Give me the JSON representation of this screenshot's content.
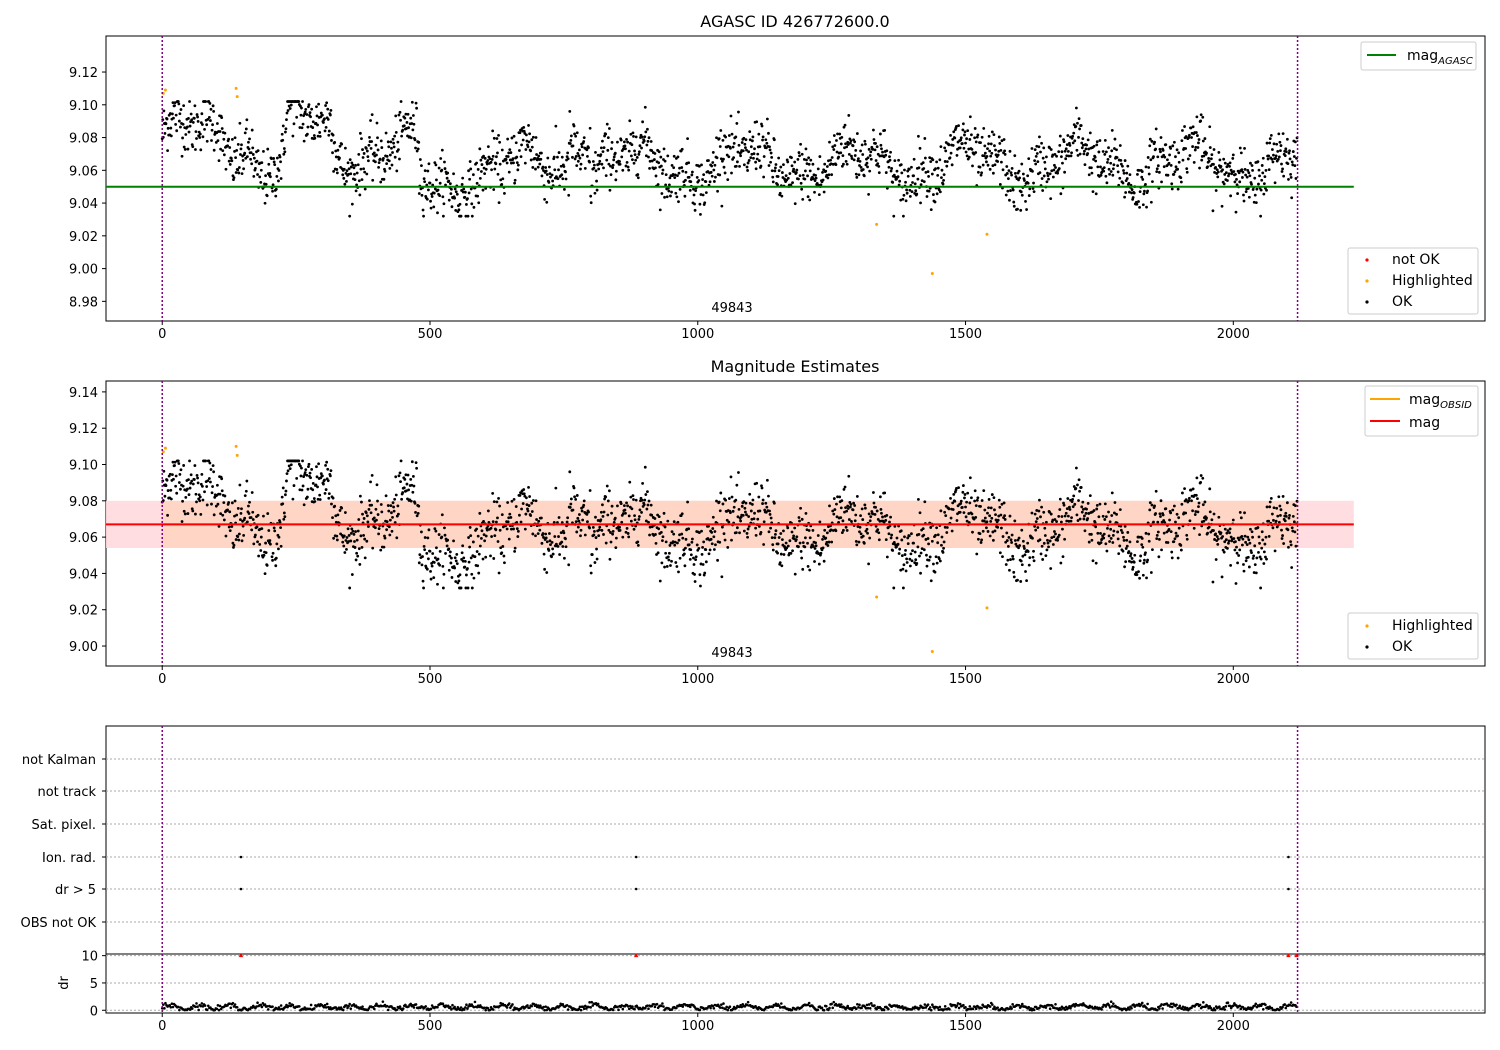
{
  "figure_title": "AGASC ID 426772600.0",
  "colors": {
    "ok": "#000000",
    "highlighted": "#ffa500",
    "not_ok": "#ff0000",
    "mag_agasc": "#008000",
    "mag_obsid": "#ffa500",
    "mag": "#ff0000",
    "obsid_boundary": "#800080",
    "band_outer": "#ffd9dd",
    "band_inner": "#ffd4c2"
  },
  "chart_data": [
    {
      "type": "scatter",
      "title": "AGASC ID 426772600.0",
      "xlim": [
        -105,
        2470
      ],
      "ylim": [
        8.968,
        9.142
      ],
      "xticks": [
        0,
        500,
        1000,
        1500,
        2000
      ],
      "yticks": [
        8.98,
        9.0,
        9.02,
        9.04,
        9.06,
        9.08,
        9.1,
        9.12
      ],
      "n_points": 2120,
      "obsid_boundaries": [
        0,
        2120
      ],
      "obsid_label": "49843",
      "series": [
        {
          "name": "not OK",
          "points": []
        },
        {
          "name": "Highlighted",
          "points": [
            [
              2,
              9.107
            ],
            [
              6,
              9.109
            ],
            [
              138,
              9.11
            ],
            [
              140,
              9.105
            ],
            [
              1334,
              9.027
            ],
            [
              1438,
              8.997
            ],
            [
              1540,
              9.021
            ]
          ]
        },
        {
          "name": "OK",
          "description_of_values": "dense noisy cloud around 9.065, range about 9.03 to 9.10"
        }
      ],
      "lines": [
        {
          "name": "magAGASC",
          "y": 9.05,
          "x_range": [
            -105,
            2225
          ]
        }
      ],
      "legend": {
        "upper_right": [
          "magAGASC"
        ],
        "lower_right": [
          "not OK",
          "Highlighted",
          "OK"
        ]
      }
    },
    {
      "type": "scatter",
      "title": "Magnitude Estimates",
      "xlim": [
        -105,
        2470
      ],
      "ylim": [
        8.989,
        9.146
      ],
      "xticks": [
        0,
        500,
        1000,
        1500,
        2000
      ],
      "yticks": [
        9.0,
        9.02,
        9.04,
        9.06,
        9.08,
        9.1,
        9.12,
        9.14
      ],
      "obsid_boundaries": [
        0,
        2120
      ],
      "obsid_label": "49843",
      "series": [
        {
          "name": "Highlighted",
          "points": [
            [
              2,
              9.107
            ],
            [
              6,
              9.109
            ],
            [
              138,
              9.11
            ],
            [
              140,
              9.105
            ],
            [
              1334,
              9.027
            ],
            [
              1438,
              8.997
            ],
            [
              1540,
              9.021
            ]
          ]
        },
        {
          "name": "OK"
        }
      ],
      "lines": [
        {
          "name": "magOBSID",
          "y": 9.067,
          "x_range": [
            0,
            2120
          ]
        },
        {
          "name": "mag",
          "y": 9.067,
          "x_range": [
            -105,
            2225
          ]
        }
      ],
      "bands": [
        {
          "y_range": [
            9.054,
            9.08
          ],
          "x_range": [
            -105,
            2225
          ]
        },
        {
          "y_range": [
            9.054,
            9.08
          ],
          "x_range": [
            0,
            2120
          ]
        }
      ],
      "legend": {
        "upper_right": [
          "magOBSID",
          "mag"
        ],
        "lower_right": [
          "Highlighted",
          "OK"
        ]
      }
    },
    {
      "type": "scatter",
      "title": "",
      "xlim": [
        -105,
        2470
      ],
      "category_labels": [
        "not Kalman",
        "not track",
        "Sat. pixel.",
        "Ion. rad.",
        "dr > 5",
        "OBS not OK"
      ],
      "flag_events": {
        "Ion. rad.": [
          147,
          885,
          2103
        ],
        "dr > 5": [
          147,
          885,
          2103
        ]
      },
      "obsid_boundaries": [
        0,
        2120
      ]
    },
    {
      "type": "scatter",
      "title": "",
      "ylabel": "dr",
      "xlim": [
        -105,
        2470
      ],
      "ylim": [
        -0.5,
        10.3
      ],
      "xticks": [
        0,
        500,
        1000,
        1500,
        2000
      ],
      "yticks": [
        0,
        5,
        10
      ],
      "dr_outliers": [
        [
          147,
          10
        ],
        [
          885,
          10
        ],
        [
          2103,
          10
        ],
        [
          2118,
          10
        ]
      ],
      "obsid_boundaries": [
        0,
        2120
      ]
    }
  ]
}
